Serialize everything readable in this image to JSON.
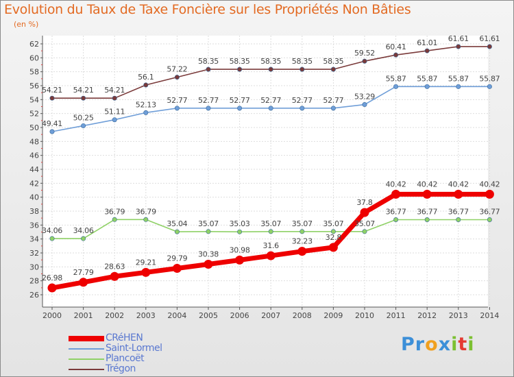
{
  "title": "Evolution du Taux de Taxe Foncière sur les Propriétés Non Bâties",
  "unit": "(en %)",
  "logo": {
    "text": "Proxiti",
    "letters": [
      {
        "ch": "P",
        "color": "#3c8fd8"
      },
      {
        "ch": "r",
        "color": "#3c8fd8"
      },
      {
        "ch": "o",
        "color": "#f0a020"
      },
      {
        "ch": "x",
        "color": "#3c8fd8"
      },
      {
        "ch": "i",
        "color": "#7cc031"
      },
      {
        "ch": "t",
        "color": "#e43a32"
      },
      {
        "ch": "i",
        "color": "#7cc031"
      }
    ]
  },
  "chart_data": {
    "type": "line",
    "title": "Evolution du Taux de Taxe Foncière sur les Propriétés Non Bâties",
    "ylabel": "(en %)",
    "xlabel": "",
    "ylim": [
      26,
      62
    ],
    "yticks": [
      26,
      28,
      30,
      32,
      34,
      36,
      38,
      40,
      42,
      44,
      46,
      48,
      50,
      52,
      54,
      56,
      58,
      60,
      62
    ],
    "grid": true,
    "categories": [
      "2000",
      "2001",
      "2002",
      "2003",
      "2004",
      "2005",
      "2006",
      "2007",
      "2008",
      "2009",
      "2010",
      "2011",
      "2012",
      "2013",
      "2014"
    ],
    "series": [
      {
        "name": "CRéHEN",
        "color": "#ee0000",
        "values": [
          26.98,
          27.79,
          28.63,
          29.21,
          29.79,
          30.38,
          30.98,
          31.6,
          32.23,
          32.8,
          37.8,
          40.42,
          40.42,
          40.42,
          40.42
        ],
        "labels": [
          "26.98",
          "27.79",
          "28.63",
          "29.21",
          "29.79",
          "30.38",
          "30.98",
          "31.6",
          "32.23",
          "32.8",
          "37.8",
          "40.42",
          "40.42",
          "40.42",
          "40.42"
        ]
      },
      {
        "name": "Saint-Lormel",
        "color": "#6f9ed8",
        "values": [
          49.41,
          50.25,
          51.11,
          52.13,
          52.77,
          52.77,
          52.77,
          52.77,
          52.77,
          52.77,
          53.29,
          55.87,
          55.87,
          55.87,
          55.87
        ],
        "labels": [
          "49.41",
          "50.25",
          "51.11",
          "52.13",
          "52.77",
          "52.77",
          "52.77",
          "52.77",
          "52.77",
          "52.77",
          "53.29",
          "55.87",
          "55.87",
          "55.87",
          "55.87"
        ]
      },
      {
        "name": "Plancoët",
        "color": "#8fd166",
        "values": [
          34.06,
          34.06,
          36.79,
          36.79,
          35.04,
          35.07,
          35.03,
          35.07,
          35.07,
          35.07,
          35.07,
          36.77,
          36.77,
          36.77,
          36.77
        ],
        "labels": [
          "34.06",
          "34.06",
          "36.79",
          "36.79",
          "35.04",
          "35.07",
          "35.03",
          "35.07",
          "35.07",
          "35.07",
          "35.07",
          "36.77",
          "36.77",
          "36.77",
          "36.77"
        ]
      },
      {
        "name": "Trégon",
        "color": "#7a3a3a",
        "values": [
          54.21,
          54.21,
          54.21,
          56.1,
          57.22,
          58.35,
          58.35,
          58.35,
          58.35,
          58.35,
          59.52,
          60.41,
          61.01,
          61.61,
          61.61
        ],
        "labels": [
          "54.21",
          "54.21",
          "54.21",
          "56.1",
          "57.22",
          "58.35",
          "58.35",
          "58.35",
          "58.35",
          "58.35",
          "59.52",
          "60.41",
          "61.01",
          "61.61",
          "61.61"
        ]
      }
    ],
    "legend_position": "bottom-left"
  }
}
